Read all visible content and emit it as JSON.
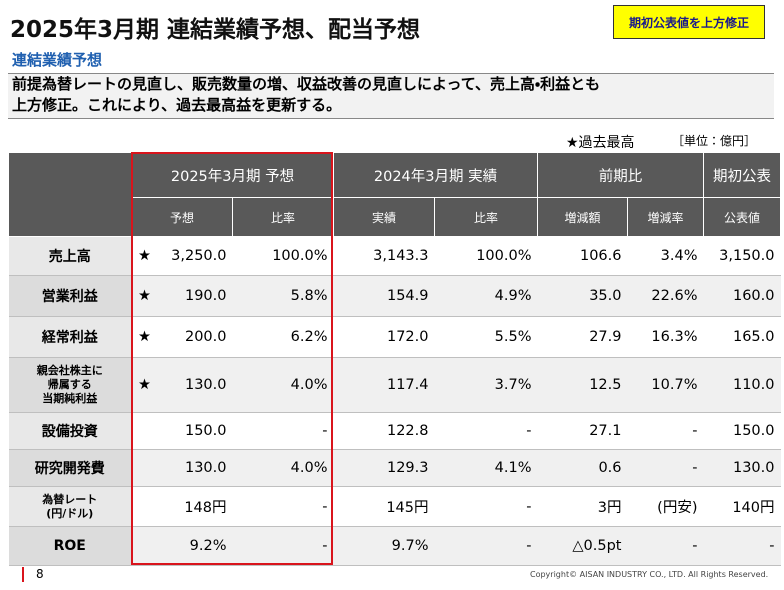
{
  "header": {
    "title": "2025年3月期 連結業績予想、配当予想",
    "badge": "期初公表値を上方修正",
    "subtitle": "連結業績予想"
  },
  "summary": [
    "前提為替レートの見直し、販売数量の増、収益改善の見直しによって、売上高・利益とも",
    "上方修正。これにより、過去最高益を更新する。"
  ],
  "note": {
    "legend": "★過去最高",
    "unit": "［単位：億円］"
  },
  "table": {
    "groups": [
      "2025年3月期 予想",
      "2024年3月期 実績",
      "前期比",
      "期初公表"
    ],
    "subheaders": [
      "予想",
      "比率",
      "実績",
      "比率",
      "増減額",
      "増減率",
      "公表値"
    ],
    "rows": [
      {
        "label": [
          "売上高"
        ],
        "star": "★",
        "cells": [
          "3,250.0",
          "100.0%",
          "3,143.3",
          "100.0%",
          "106.6",
          "3.4%",
          "3,150.0"
        ]
      },
      {
        "label": [
          "営業利益"
        ],
        "star": "★",
        "cells": [
          "190.0",
          "5.8%",
          "154.9",
          "4.9%",
          "35.0",
          "22.6%",
          "160.0"
        ]
      },
      {
        "label": [
          "経常利益"
        ],
        "star": "★",
        "cells": [
          "200.0",
          "6.2%",
          "172.0",
          "5.5%",
          "27.9",
          "16.3%",
          "165.0"
        ]
      },
      {
        "label": [
          "親会社株主に",
          "帰属する",
          "当期純利益"
        ],
        "star": "★",
        "cells": [
          "130.0",
          "4.0%",
          "117.4",
          "3.7%",
          "12.5",
          "10.7%",
          "110.0"
        ]
      },
      {
        "label": [
          "設備投資"
        ],
        "cells": [
          "150.0",
          "-",
          "122.8",
          "-",
          "27.1",
          "-",
          "150.0"
        ]
      },
      {
        "label": [
          "研究開発費"
        ],
        "cells": [
          "130.0",
          "4.0%",
          "129.3",
          "4.1%",
          "0.6",
          "-",
          "130.0"
        ]
      },
      {
        "label": [
          "為替レート",
          "(円/ドル)"
        ],
        "cells": [
          "148円",
          "-",
          "145円",
          "-",
          "3円",
          "(円安)",
          "140円"
        ]
      },
      {
        "label": [
          "ROE"
        ],
        "cells": [
          "9.2%",
          "-",
          "9.7%",
          "-",
          "△0.5pt",
          "-",
          "-"
        ]
      }
    ]
  },
  "footer": {
    "page": "8",
    "copyright": "Copyright© AISAN INDUSTRY CO., LTD. All Rights Reserved."
  }
}
